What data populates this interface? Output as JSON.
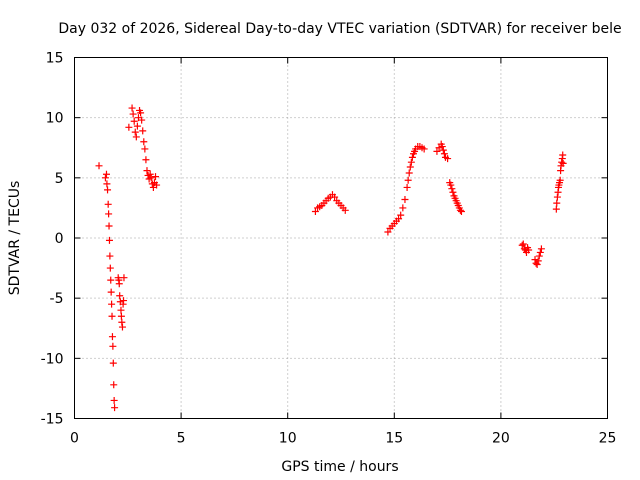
{
  "chart_data": {
    "type": "scatter",
    "title": "Day 032 of 2026, Sidereal Day-to-day VTEC variation (SDTVAR) for receiver bele",
    "xlabel": "GPS time / hours",
    "ylabel": "SDTVAR / TECUs",
    "xlim": [
      0,
      25
    ],
    "ylim": [
      -15,
      15
    ],
    "xticks": [
      0,
      5,
      10,
      15,
      20,
      25
    ],
    "yticks": [
      -15,
      -10,
      -5,
      0,
      5,
      10,
      15
    ],
    "xtick_labels": [
      "0",
      "5",
      "10",
      "15",
      "20",
      "25"
    ],
    "ytick_labels": [
      "-15",
      "-10",
      "-5",
      "0",
      "5",
      "10",
      "15"
    ],
    "grid": true,
    "marker": "plus",
    "color": "#ff0000",
    "series": [
      {
        "name": "SDTVAR",
        "segments": [
          {
            "x": [
              1.15,
              1.45,
              1.5,
              1.52,
              1.55,
              1.58,
              1.6,
              1.62,
              1.64,
              1.66,
              1.68,
              1.7,
              1.72,
              1.74,
              1.76,
              1.78,
              1.8,
              1.82,
              1.84,
              1.86,
              1.88
            ],
            "y": [
              6.0,
              5.0,
              5.3,
              4.5,
              4.0,
              2.8,
              2.0,
              1.0,
              -0.2,
              -1.5,
              -2.5,
              -3.5,
              -4.5,
              -5.5,
              -6.5,
              -8.2,
              -9.0,
              -10.4,
              -12.2,
              -13.5,
              -14.1
            ]
          },
          {
            "x": [
              2.05,
              2.08,
              2.1,
              2.12,
              2.15,
              2.18,
              2.2,
              2.22,
              2.25,
              2.28,
              2.3,
              2.32
            ],
            "y": [
              -3.3,
              -3.5,
              -3.8,
              -4.8,
              -5.3,
              -6.0,
              -6.5,
              -7.0,
              -7.4,
              -5.5,
              -5.2,
              -3.3
            ]
          },
          {
            "x": [
              2.55,
              2.7,
              2.75,
              2.8,
              2.85,
              2.9,
              2.95,
              3.0,
              3.05,
              3.1,
              3.15,
              3.2,
              3.25,
              3.3,
              3.35,
              3.4,
              3.45,
              3.5,
              3.55,
              3.6,
              3.65,
              3.7,
              3.75,
              3.8,
              3.85
            ],
            "y": [
              9.2,
              10.8,
              10.3,
              9.7,
              8.8,
              8.4,
              9.3,
              10.0,
              10.6,
              10.4,
              9.8,
              8.9,
              8.0,
              7.4,
              6.5,
              5.6,
              5.2,
              4.9,
              5.3,
              5.0,
              4.5,
              4.2,
              4.6,
              5.1,
              4.4
            ]
          },
          {
            "x": [
              11.3,
              11.4,
              11.5,
              11.6,
              11.7,
              11.8,
              11.9,
              12.0,
              12.1,
              12.2,
              12.3,
              12.4,
              12.5,
              12.6,
              12.7
            ],
            "y": [
              2.2,
              2.5,
              2.6,
              2.7,
              2.9,
              3.1,
              3.3,
              3.4,
              3.6,
              3.4,
              3.1,
              2.9,
              2.7,
              2.5,
              2.3
            ]
          },
          {
            "x": [
              14.7,
              14.8,
              14.9,
              15.0,
              15.1,
              15.2,
              15.3,
              15.4,
              15.5,
              15.6,
              15.65,
              15.7,
              15.75,
              15.8,
              15.85,
              15.9,
              15.95,
              16.0,
              16.1,
              16.2,
              16.3,
              16.4
            ],
            "y": [
              0.5,
              0.8,
              1.0,
              1.2,
              1.4,
              1.6,
              1.9,
              2.5,
              3.2,
              4.2,
              4.8,
              5.4,
              5.9,
              6.3,
              6.7,
              7.0,
              7.2,
              7.4,
              7.6,
              7.6,
              7.5,
              7.4
            ]
          },
          {
            "x": [
              17.0,
              17.1,
              17.2,
              17.25,
              17.3,
              17.35,
              17.4,
              17.5
            ],
            "y": [
              7.2,
              7.5,
              7.8,
              7.6,
              7.3,
              7.0,
              6.7,
              6.6
            ]
          },
          {
            "x": [
              17.6,
              17.65,
              17.7,
              17.75,
              17.8,
              17.85,
              17.9,
              17.95,
              18.0,
              18.05,
              18.1,
              18.15
            ],
            "y": [
              4.6,
              4.4,
              4.1,
              3.8,
              3.5,
              3.3,
              3.1,
              2.9,
              2.7,
              2.5,
              2.3,
              2.2
            ]
          },
          {
            "x": [
              21.0,
              21.05,
              21.1,
              21.15,
              21.2,
              21.25,
              21.3
            ],
            "y": [
              -0.6,
              -0.5,
              -0.9,
              -1.0,
              -1.2,
              -0.8,
              -1.0
            ]
          },
          {
            "x": [
              21.6,
              21.65,
              21.7,
              21.75,
              21.8,
              21.85,
              21.9
            ],
            "y": [
              -1.8,
              -2.1,
              -2.2,
              -1.9,
              -1.5,
              -1.2,
              -0.9
            ]
          },
          {
            "x": [
              22.6,
              22.62,
              22.65,
              22.68,
              22.7,
              22.72,
              22.75,
              22.78,
              22.8,
              22.82,
              22.85,
              22.88,
              22.9,
              22.92
            ],
            "y": [
              2.4,
              2.9,
              3.4,
              3.8,
              4.2,
              4.4,
              4.6,
              4.8,
              5.6,
              6.0,
              6.3,
              6.6,
              6.9,
              6.2
            ]
          }
        ]
      }
    ]
  }
}
